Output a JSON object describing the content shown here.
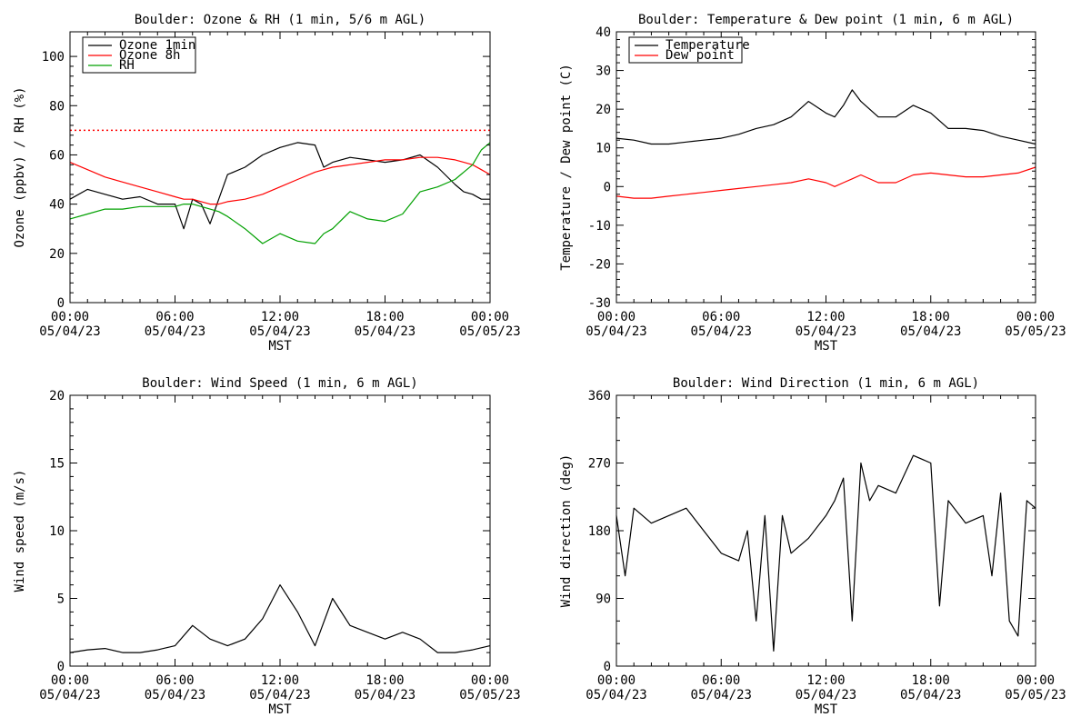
{
  "chart_data": [
    {
      "type": "line",
      "title": "Boulder: Ozone & RH (1 min, 5/6 m AGL)",
      "xlabel": "MST",
      "ylabel": "Ozone (ppbv) / RH (%)",
      "xlim": [
        "2023-05-04 00:00",
        "2023-05-05 00:00"
      ],
      "ylim": [
        0,
        110
      ],
      "y_ticks": [
        0,
        20,
        40,
        60,
        80,
        100
      ],
      "y_tick_labels": [
        "0",
        "20",
        "40",
        "60",
        "80",
        "100"
      ],
      "x_tick_labels": [
        [
          "00:00",
          "05/04/23"
        ],
        [
          "06:00",
          "05/04/23"
        ],
        [
          "12:00",
          "05/04/23"
        ],
        [
          "18:00",
          "05/04/23"
        ],
        [
          "00:00",
          "05/05/23"
        ]
      ],
      "legend_position": "top-left",
      "reference_line": {
        "y": 70,
        "style": "dotted",
        "color": "#ff0000"
      },
      "x_hours": [
        0,
        1,
        2,
        3,
        4,
        5,
        6,
        6.5,
        7,
        7.5,
        8,
        8.5,
        9,
        10,
        11,
        12,
        13,
        14,
        14.5,
        15,
        16,
        17,
        18,
        19,
        20,
        21,
        22,
        22.5,
        23,
        23.5,
        24
      ],
      "series": [
        {
          "name": "Ozone 1min",
          "color": "#000000",
          "values": [
            42,
            46,
            44,
            42,
            43,
            40,
            40,
            30,
            42,
            40,
            32,
            42,
            52,
            55,
            60,
            63,
            65,
            64,
            55,
            57,
            59,
            58,
            57,
            58,
            60,
            55,
            48,
            45,
            44,
            42,
            42
          ]
        },
        {
          "name": "Ozone 8h",
          "color": "#ff0000",
          "values": [
            57,
            54,
            51,
            49,
            47,
            45,
            43,
            42,
            42,
            41,
            40,
            40,
            41,
            42,
            44,
            47,
            50,
            53,
            54,
            55,
            56,
            57,
            58,
            58,
            59,
            59,
            58,
            57,
            56,
            54,
            52
          ]
        },
        {
          "name": "RH",
          "color": "#00a000",
          "values": [
            34,
            36,
            38,
            38,
            39,
            39,
            39,
            40,
            40,
            39,
            38,
            37,
            35,
            30,
            24,
            28,
            25,
            24,
            28,
            30,
            37,
            34,
            33,
            36,
            45,
            47,
            50,
            53,
            56,
            62,
            65
          ]
        }
      ]
    },
    {
      "type": "line",
      "title": "Boulder: Temperature & Dew point (1 min, 6 m AGL)",
      "xlabel": "MST",
      "ylabel": "Temperature / Dew point (C)",
      "xlim": [
        "2023-05-04 00:00",
        "2023-05-05 00:00"
      ],
      "ylim": [
        -30,
        40
      ],
      "y_ticks": [
        -30,
        -20,
        -10,
        0,
        10,
        20,
        30,
        40
      ],
      "y_tick_labels": [
        "-30",
        "-20",
        "-10",
        "0",
        "10",
        "20",
        "30",
        "40"
      ],
      "x_tick_labels": [
        [
          "00:00",
          "05/04/23"
        ],
        [
          "06:00",
          "05/04/23"
        ],
        [
          "12:00",
          "05/04/23"
        ],
        [
          "18:00",
          "05/04/23"
        ],
        [
          "00:00",
          "05/05/23"
        ]
      ],
      "legend_position": "top-left",
      "x_hours": [
        0,
        1,
        2,
        3,
        4,
        5,
        6,
        7,
        8,
        9,
        10,
        11,
        12,
        12.5,
        13,
        13.5,
        14,
        15,
        16,
        17,
        18,
        19,
        20,
        21,
        22,
        23,
        24
      ],
      "series": [
        {
          "name": "Temperature",
          "color": "#000000",
          "values": [
            12.5,
            12,
            11,
            11,
            11.5,
            12,
            12.5,
            13.5,
            15,
            16,
            18,
            22,
            19,
            18,
            21,
            25,
            22,
            18,
            18,
            21,
            19,
            15,
            15,
            14.5,
            13,
            12,
            11
          ]
        },
        {
          "name": "Dew point",
          "color": "#ff0000",
          "values": [
            -2.5,
            -3,
            -3,
            -2.5,
            -2,
            -1.5,
            -1,
            -0.5,
            0,
            0.5,
            1,
            2,
            1,
            0,
            1,
            2,
            3,
            1,
            1,
            3,
            3.5,
            3,
            2.5,
            2.5,
            3,
            3.5,
            5
          ]
        }
      ]
    },
    {
      "type": "line",
      "title": "Boulder: Wind Speed (1 min, 6 m AGL)",
      "xlabel": "MST",
      "ylabel": "Wind speed (m/s)",
      "xlim": [
        "2023-05-04 00:00",
        "2023-05-05 00:00"
      ],
      "ylim": [
        0,
        20
      ],
      "y_ticks": [
        0,
        5,
        10,
        15,
        20
      ],
      "y_tick_labels": [
        "0",
        "5",
        "10",
        "15",
        "20"
      ],
      "x_tick_labels": [
        [
          "00:00",
          "05/04/23"
        ],
        [
          "06:00",
          "05/04/23"
        ],
        [
          "12:00",
          "05/04/23"
        ],
        [
          "18:00",
          "05/04/23"
        ],
        [
          "00:00",
          "05/05/23"
        ]
      ],
      "x_hours": [
        0,
        1,
        2,
        3,
        4,
        5,
        6,
        7,
        8,
        9,
        10,
        11,
        12,
        13,
        14,
        15,
        16,
        17,
        18,
        19,
        20,
        21,
        22,
        23,
        24
      ],
      "series": [
        {
          "name": "",
          "color": "#000000",
          "values": [
            1,
            1.2,
            1.3,
            1,
            1,
            1.2,
            1.5,
            3,
            2,
            1.5,
            2,
            3.5,
            6,
            4,
            1.5,
            5,
            3,
            2.5,
            2,
            2.5,
            2,
            1,
            1,
            1.2,
            1.5
          ]
        }
      ]
    },
    {
      "type": "line",
      "title": "Boulder: Wind Direction (1 min, 6 m AGL)",
      "xlabel": "MST",
      "ylabel": "Wind direction (deg)",
      "xlim": [
        "2023-05-04 00:00",
        "2023-05-05 00:00"
      ],
      "ylim": [
        0,
        360
      ],
      "y_ticks": [
        0,
        90,
        180,
        270,
        360
      ],
      "y_tick_labels": [
        "0",
        "90",
        "180",
        "270",
        "360"
      ],
      "x_tick_labels": [
        [
          "00:00",
          "05/04/23"
        ],
        [
          "06:00",
          "05/04/23"
        ],
        [
          "12:00",
          "05/04/23"
        ],
        [
          "18:00",
          "05/04/23"
        ],
        [
          "00:00",
          "05/05/23"
        ]
      ],
      "x_hours": [
        0,
        0.5,
        1,
        2,
        3,
        4,
        5,
        6,
        7,
        7.5,
        8,
        8.5,
        9,
        9.5,
        10,
        11,
        12,
        12.5,
        13,
        13.5,
        14,
        14.5,
        15,
        16,
        17,
        18,
        18.5,
        19,
        20,
        21,
        21.5,
        22,
        22.5,
        23,
        23.5,
        24
      ],
      "series": [
        {
          "name": "",
          "color": "#000000",
          "values": [
            200,
            120,
            210,
            190,
            200,
            210,
            180,
            150,
            140,
            180,
            60,
            200,
            20,
            200,
            150,
            170,
            200,
            220,
            250,
            60,
            270,
            220,
            240,
            230,
            280,
            270,
            80,
            220,
            190,
            200,
            120,
            230,
            60,
            40,
            220,
            210
          ]
        }
      ]
    }
  ]
}
